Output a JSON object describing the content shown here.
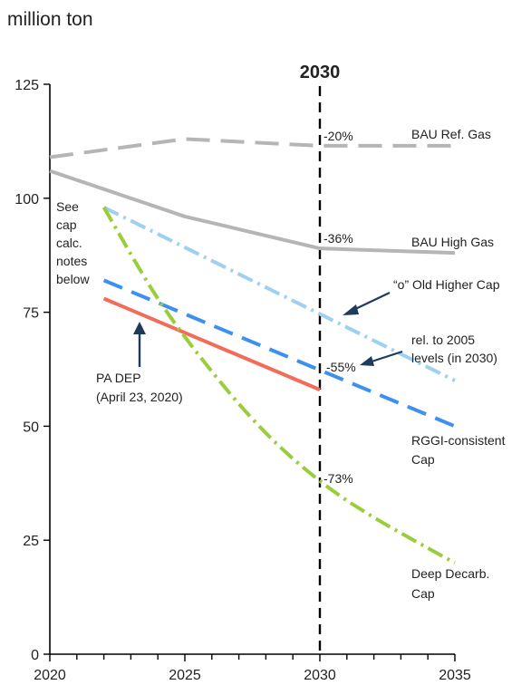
{
  "chart_data": {
    "type": "line",
    "ylabel": "million ton",
    "ylim": [
      0,
      125
    ],
    "xlim": [
      2020,
      2035
    ],
    "y_ticks": [
      "0",
      "25",
      "50",
      "75",
      "100",
      "125"
    ],
    "x_ticks": [
      "2020",
      "2025",
      "2030",
      "2035"
    ],
    "marker": {
      "x": 2030,
      "label": "2030"
    },
    "series": [
      {
        "name": "BAU Ref. Gas",
        "color": "#b5b5b5",
        "dash": "dash-long",
        "x": [
          2020,
          2025,
          2030,
          2035
        ],
        "y": [
          109,
          113,
          111.5,
          111.5
        ]
      },
      {
        "name": "BAU High Gas",
        "color": "#b5b5b5",
        "dash": "solid",
        "x": [
          2020,
          2025,
          2030,
          2035
        ],
        "y": [
          106,
          96,
          89,
          88
        ]
      },
      {
        "name": "“o” Old Higher Cap",
        "color": "#9fd0f0",
        "dash": "dash-dot",
        "x": [
          2022,
          2035
        ],
        "y": [
          98,
          60
        ]
      },
      {
        "name": "RGGI-consistent Cap",
        "color": "#3d8ff0",
        "dash": "dash",
        "x": [
          2022,
          2035
        ],
        "y": [
          82,
          50
        ]
      },
      {
        "name": "PA DEP (April 23, 2020)",
        "color": "#f36b59",
        "dash": "solid",
        "x": [
          2022,
          2030
        ],
        "y": [
          78,
          58
        ]
      },
      {
        "name": "Deep Decarb. Cap",
        "color": "#9acd3c",
        "dash": "dash-dot",
        "x": [
          2022,
          2024,
          2026,
          2028,
          2030,
          2032,
          2035
        ],
        "y": [
          98,
          78,
          62,
          48.5,
          38,
          30,
          20
        ]
      }
    ],
    "annotations": {
      "pct_20": "-20%",
      "pct_36": "-36%",
      "pct_55": "-55%",
      "pct_73": "-73%",
      "label_bau_ref": "BAU Ref. Gas",
      "label_bau_high": "BAU High Gas",
      "label_old_cap": "“o” Old Higher Cap",
      "rel_line1": "rel. to 2005",
      "rel_line2": "levels (in 2030)",
      "rggi_line1": "RGGI-consistent",
      "rggi_line2": "Cap",
      "deep_line1": "Deep Decarb.",
      "deep_line2": "Cap",
      "padep_line1": "PA DEP",
      "padep_line2": "(April 23, 2020)",
      "notes": [
        "See",
        "cap",
        "calc.",
        "notes",
        "below"
      ]
    },
    "grid": false
  }
}
